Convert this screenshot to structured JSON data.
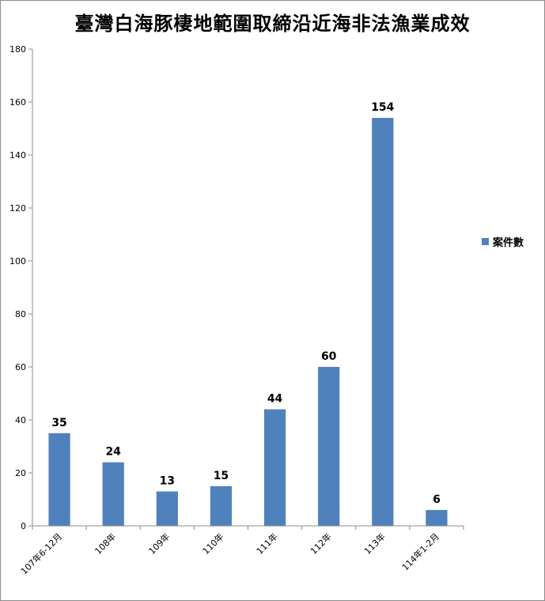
{
  "chart_data": {
    "type": "bar",
    "title": "臺灣白海豚棲地範圍取締沿近海非法漁業成效",
    "categories": [
      "107年6-12月",
      "108年",
      "109年",
      "110年",
      "111年",
      "112年",
      "113年",
      "114年1-2月"
    ],
    "series": [
      {
        "name": "案件數",
        "values": [
          35,
          24,
          13,
          15,
          44,
          60,
          154,
          6
        ],
        "color": "#4f81bd"
      }
    ],
    "ylim": [
      0,
      180
    ],
    "yticks": [
      0,
      20,
      40,
      60,
      80,
      100,
      120,
      140,
      160,
      180
    ],
    "xlabel": "",
    "ylabel": "",
    "grid": false,
    "legend_position": "right",
    "data_labels": true
  }
}
